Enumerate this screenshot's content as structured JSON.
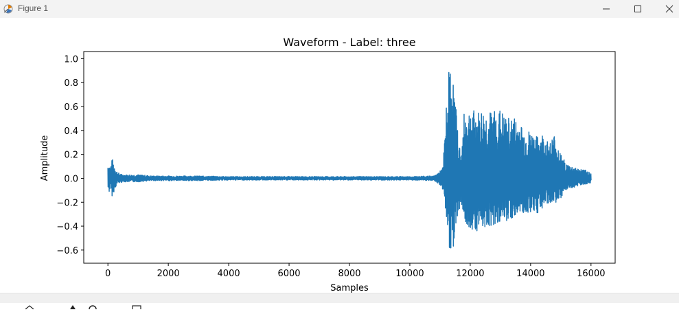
{
  "window": {
    "title": "Figure 1",
    "icon": "matplotlib-figure-icon",
    "controls": [
      "minimize-icon",
      "maximize-icon",
      "close-icon"
    ]
  },
  "chart_data": {
    "type": "line",
    "title": "Waveform - Label: three",
    "xlabel": "Samples",
    "ylabel": "Amplitude",
    "xlim": [
      -800,
      16800
    ],
    "ylim": [
      -0.71,
      1.06
    ],
    "x_ticks": [
      0,
      2000,
      4000,
      6000,
      8000,
      10000,
      12000,
      14000,
      16000
    ],
    "x_tick_labels": [
      "0",
      "2000",
      "4000",
      "6000",
      "8000",
      "10000",
      "12000",
      "14000",
      "16000"
    ],
    "y_ticks": [
      -0.6,
      -0.4,
      -0.2,
      0.0,
      0.2,
      0.4,
      0.6,
      0.8,
      1.0
    ],
    "y_tick_labels": [
      "−0.6",
      "−0.4",
      "−0.2",
      "0.0",
      "0.2",
      "0.4",
      "0.6",
      "0.8",
      "1.0"
    ],
    "grid": false,
    "line_color": "#1f77b4",
    "series": [
      {
        "x": [
          0,
          40,
          80,
          120,
          160,
          200,
          240,
          280,
          320,
          400,
          500,
          600,
          800,
          1000,
          1500,
          2000,
          3000,
          4000,
          5000,
          6000,
          7000,
          8000,
          9000,
          10000,
          10800,
          11000,
          11100,
          11200,
          11250,
          11300,
          11350,
          11400,
          11450,
          11500,
          11600,
          11700,
          11800,
          12000,
          12200,
          12400,
          12600,
          12800,
          13000,
          13200,
          13400,
          13600,
          13800,
          14000,
          14200,
          14400,
          14600,
          14800,
          15000,
          15200,
          15400,
          15600,
          15800,
          16000
        ],
        "y_max": [
          0.13,
          0.12,
          0.1,
          0.15,
          0.16,
          0.12,
          0.1,
          0.07,
          0.05,
          0.04,
          0.03,
          0.03,
          0.03,
          0.03,
          0.02,
          0.02,
          0.02,
          0.015,
          0.015,
          0.015,
          0.015,
          0.015,
          0.015,
          0.015,
          0.02,
          0.06,
          0.1,
          0.6,
          0.65,
          0.95,
          0.98,
          0.95,
          0.78,
          0.7,
          0.35,
          0.2,
          0.55,
          0.6,
          0.55,
          0.58,
          0.55,
          0.58,
          0.58,
          0.5,
          0.52,
          0.5,
          0.4,
          0.4,
          0.35,
          0.38,
          0.3,
          0.38,
          0.2,
          0.12,
          0.1,
          0.08,
          0.07,
          0.05
        ],
        "y_min": [
          -0.1,
          -0.12,
          -0.08,
          -0.14,
          -0.17,
          -0.1,
          -0.08,
          -0.06,
          -0.04,
          -0.04,
          -0.03,
          -0.03,
          -0.03,
          -0.03,
          -0.02,
          -0.02,
          -0.02,
          -0.015,
          -0.015,
          -0.015,
          -0.015,
          -0.015,
          -0.015,
          -0.015,
          -0.02,
          -0.06,
          -0.1,
          -0.35,
          -0.48,
          -0.58,
          -0.63,
          -0.62,
          -0.55,
          -0.4,
          -0.3,
          -0.2,
          -0.4,
          -0.42,
          -0.44,
          -0.42,
          -0.4,
          -0.4,
          -0.36,
          -0.36,
          -0.34,
          -0.3,
          -0.3,
          -0.28,
          -0.3,
          -0.25,
          -0.22,
          -0.2,
          -0.2,
          -0.1,
          -0.08,
          -0.06,
          -0.05,
          -0.04
        ]
      }
    ]
  }
}
